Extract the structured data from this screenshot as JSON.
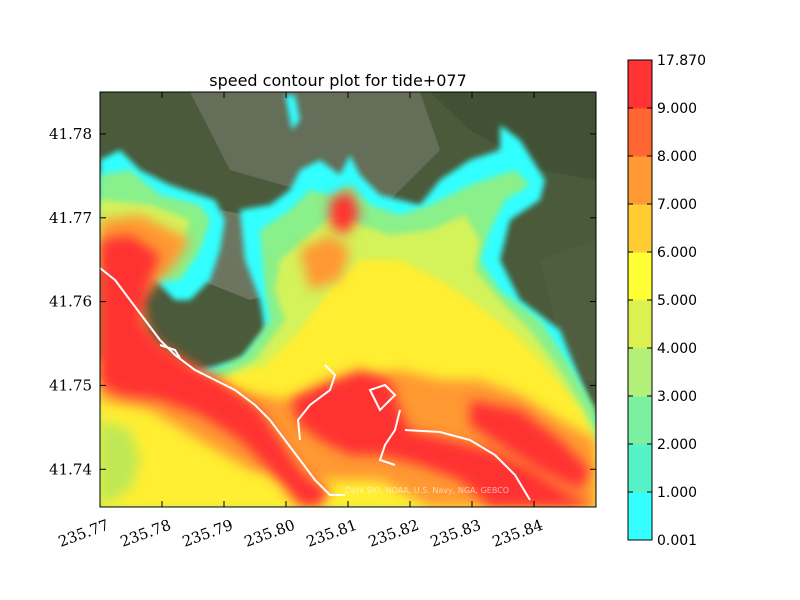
{
  "chart_data": {
    "type": "heatmap",
    "title": "speed contour plot for tide+077",
    "xlabel": "",
    "ylabel": "",
    "x_ticks": [
      "235.77",
      "235.78",
      "235.79",
      "235.80",
      "235.81",
      "235.82",
      "235.83",
      "235.84"
    ],
    "y_ticks": [
      "41.78",
      "41.77",
      "41.76",
      "41.75",
      "41.74"
    ],
    "xlim": [
      235.77,
      235.85
    ],
    "ylim": [
      41.7355,
      41.785
    ],
    "colorbar": {
      "levels": [
        "0.001",
        "1.000",
        "2.000",
        "3.000",
        "4.000",
        "5.000",
        "6.000",
        "7.000",
        "8.000",
        "9.000",
        "17.870"
      ],
      "colors": [
        "#33ffff",
        "#55f2c8",
        "#7af0a0",
        "#b2f07a",
        "#dcf252",
        "#ffff33",
        "#ffcc33",
        "#ff9933",
        "#ff6633",
        "#ff3333"
      ]
    },
    "attribution": "Data SIO, NOAA, U.S. Navy, NGA, GEBCO"
  }
}
